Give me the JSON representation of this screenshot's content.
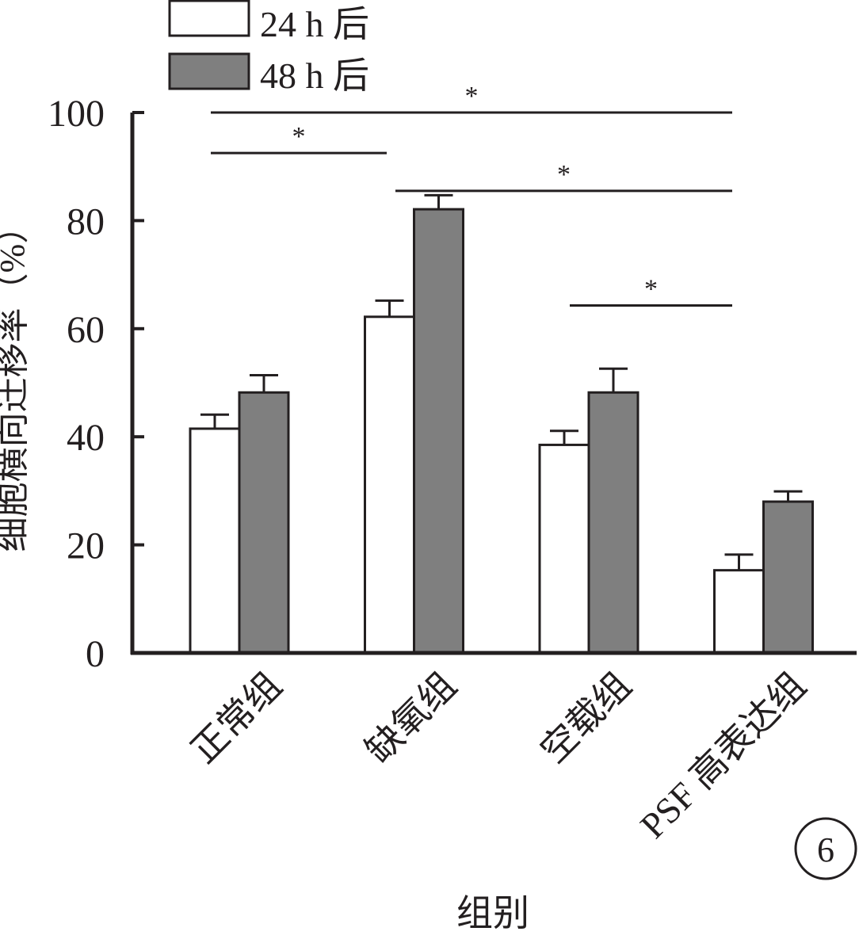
{
  "chart_data": {
    "type": "bar",
    "xlabel": "组别",
    "ylabel": "细胞横向迁移率（%）",
    "ylim": [
      0,
      100
    ],
    "yticks": [
      0,
      20,
      40,
      60,
      80,
      100
    ],
    "categories": [
      "正常组",
      "缺氧组",
      "空载组",
      "PSF 高表达组"
    ],
    "series": [
      {
        "name": "24 h 后",
        "values": [
          41.5,
          62.2,
          38.5,
          15.3
        ],
        "errors": [
          2.6,
          3.0,
          2.6,
          2.9
        ],
        "color": "#ffffff"
      },
      {
        "name": "48 h 后",
        "values": [
          48.2,
          82.1,
          48.2,
          28.0
        ],
        "errors": [
          3.2,
          2.6,
          4.4,
          1.9
        ],
        "color": "#7f7f7f"
      }
    ],
    "significance": [
      {
        "from_category": 0,
        "to_category": 3,
        "y": 100,
        "label": "*"
      },
      {
        "from_category": 0,
        "to_category": 1,
        "y": 92.5,
        "label": "*"
      },
      {
        "from_category": 1,
        "to_category": 3,
        "y": 85.5,
        "label": "*"
      },
      {
        "from_category": 2,
        "to_category": 3,
        "y": 64.3,
        "label": "*"
      }
    ],
    "legend_position": "top-left",
    "grid": false,
    "panel_label": "6"
  }
}
